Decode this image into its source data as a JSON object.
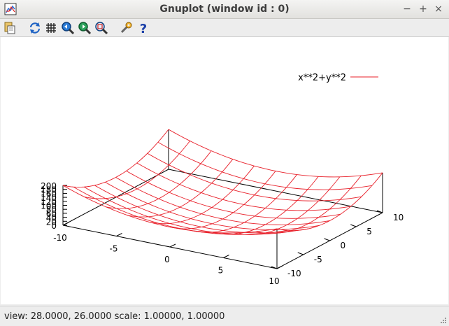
{
  "window": {
    "title": "Gnuplot (window id : 0)",
    "minimize_glyph": "−",
    "maximize_glyph": "+",
    "close_glyph": "×"
  },
  "toolbar": {
    "icons": [
      "copy-to-clipboard-icon",
      "replot-icon",
      "grid-icon",
      "zoom-previous-icon",
      "zoom-next-icon",
      "unzoom-icon",
      "options-icon",
      "help-icon"
    ]
  },
  "status": {
    "text": "view: 28.0000, 26.0000  scale: 1.00000, 1.00000"
  },
  "chart_data": {
    "type": "surface",
    "title": "",
    "legend": {
      "label": "x**2+y**2",
      "position": "top-right"
    },
    "color": "#e8202a",
    "function": "x**2+y**2",
    "x_range": [
      -10,
      10
    ],
    "y_range": [
      -10,
      10
    ],
    "z_range": [
      0,
      200
    ],
    "x_ticks": [
      "-10",
      "-5",
      "0",
      "5",
      "10"
    ],
    "y_ticks": [
      "-10",
      "-5",
      "0",
      "5",
      "10"
    ],
    "z_ticks": [
      "0",
      "20",
      "40",
      "60",
      "80",
      "100",
      "120",
      "140",
      "160",
      "180",
      "200"
    ],
    "view": {
      "rot_x": 28,
      "rot_z": 26
    }
  }
}
